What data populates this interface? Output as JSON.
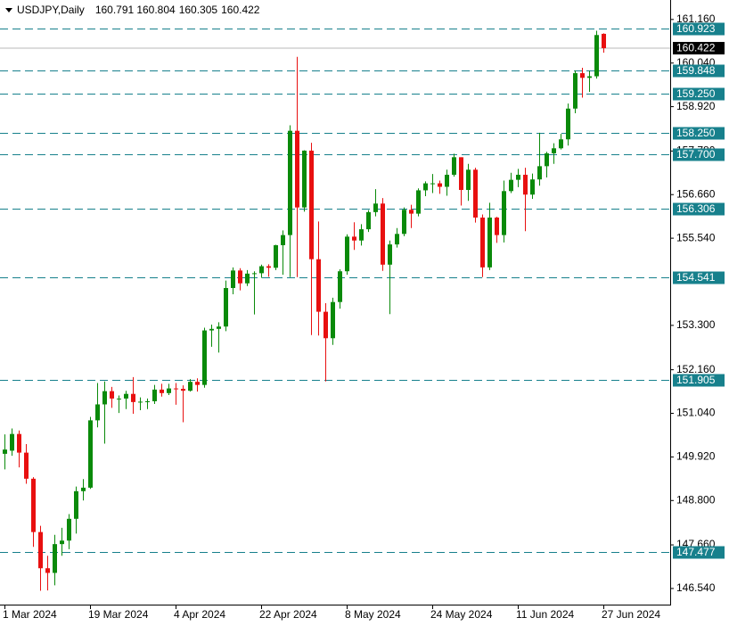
{
  "chart_data": {
    "type": "candlestick",
    "title": "USDJPY,Daily",
    "categories": [
      "1 Mar 2024",
      null,
      null,
      null,
      null,
      null,
      null,
      null,
      null,
      null,
      null,
      null,
      "19 Mar 2024",
      null,
      null,
      null,
      null,
      null,
      null,
      null,
      null,
      null,
      null,
      null,
      "4 Apr 2024",
      null,
      null,
      null,
      null,
      null,
      null,
      null,
      null,
      null,
      null,
      null,
      "22 Apr 2024",
      null,
      null,
      null,
      null,
      null,
      null,
      null,
      null,
      null,
      null,
      null,
      "8 May 2024",
      null,
      null,
      null,
      null,
      null,
      null,
      null,
      null,
      null,
      null,
      null,
      "24 May 2024",
      null,
      null,
      null,
      null,
      null,
      null,
      null,
      null,
      null,
      null,
      null,
      "11 Jun 2024",
      null,
      null,
      null,
      null,
      null,
      null,
      null,
      null,
      null,
      null,
      null,
      "27 Jun 2024"
    ],
    "open": [
      150.0,
      150.08,
      150.51,
      150.03,
      149.36,
      147.99,
      147.06,
      146.94,
      147.68,
      147.77,
      148.33,
      149.04,
      149.13,
      150.86,
      151.27,
      151.61,
      151.42,
      151.42,
      151.54,
      151.33,
      151.34,
      151.35,
      151.65,
      151.56,
      151.68,
      151.67,
      151.62,
      151.85,
      151.77,
      153.17,
      153.21,
      153.27,
      154.26,
      154.71,
      154.38,
      154.63,
      154.64,
      154.82,
      154.78,
      155.36,
      155.62,
      158.3,
      156.33,
      157.79,
      155.0,
      153.65,
      152.97,
      153.9,
      154.69,
      155.58,
      155.48,
      155.77,
      156.21,
      156.43,
      154.86,
      155.38,
      155.65,
      156.27,
      156.17,
      156.77,
      156.95,
      156.95,
      156.86,
      157.17,
      157.62,
      156.78,
      157.3,
      156.07,
      154.79,
      156.07,
      155.62,
      156.75,
      157.04,
      157.17,
      156.66,
      157.05,
      157.39,
      157.72,
      157.85,
      158.08,
      158.87,
      159.78,
      159.66,
      159.7,
      160.791
    ],
    "high": [
      150.5,
      150.65,
      150.6,
      150.25,
      149.4,
      148.15,
      147.38,
      147.92,
      148.1,
      148.45,
      149.16,
      149.35,
      150.95,
      151.82,
      151.86,
      151.72,
      151.5,
      151.62,
      151.97,
      151.45,
      151.42,
      151.77,
      151.8,
      151.8,
      151.82,
      151.76,
      151.92,
      151.94,
      153.24,
      153.32,
      153.38,
      154.45,
      154.79,
      154.77,
      154.72,
      154.69,
      154.86,
      154.87,
      155.37,
      155.74,
      158.44,
      160.2,
      157.8,
      157.99,
      155.97,
      153.87,
      154.01,
      154.74,
      155.64,
      155.95,
      155.9,
      156.26,
      156.8,
      156.57,
      155.48,
      155.8,
      156.33,
      156.4,
      156.82,
      157.0,
      157.19,
      157.02,
      157.3,
      157.71,
      157.62,
      157.45,
      157.35,
      156.15,
      156.45,
      156.09,
      157.02,
      157.22,
      157.32,
      157.35,
      157.2,
      158.25,
      157.76,
      157.98,
      158.22,
      159.0,
      159.85,
      159.92,
      159.84,
      160.87,
      160.804
    ],
    "low": [
      149.6,
      149.95,
      149.65,
      149.23,
      147.61,
      146.48,
      146.49,
      146.62,
      147.38,
      147.55,
      147.95,
      148.8,
      149.1,
      150.68,
      150.26,
      151.18,
      151.05,
      151.15,
      151.03,
      151.12,
      151.15,
      151.28,
      151.47,
      151.51,
      151.26,
      150.81,
      151.6,
      151.6,
      151.7,
      152.75,
      152.6,
      153.15,
      154.1,
      154.2,
      154.31,
      153.58,
      154.52,
      154.55,
      154.72,
      154.6,
      154.54,
      154.54,
      156.22,
      153.05,
      153.04,
      151.86,
      152.8,
      153.73,
      154.6,
      155.24,
      155.35,
      155.7,
      156.1,
      154.7,
      153.59,
      155.3,
      155.59,
      155.8,
      156.1,
      156.62,
      156.7,
      156.68,
      156.63,
      157.12,
      156.38,
      156.5,
      155.94,
      154.54,
      154.72,
      155.42,
      155.43,
      156.7,
      156.85,
      155.72,
      156.55,
      156.89,
      157.1,
      157.45,
      157.82,
      157.92,
      158.75,
      159.15,
      159.3,
      159.64,
      160.305
    ],
    "close": [
      150.11,
      150.51,
      150.03,
      149.36,
      147.99,
      147.06,
      146.94,
      147.68,
      147.77,
      148.33,
      149.04,
      149.13,
      150.86,
      151.27,
      151.61,
      151.42,
      151.42,
      151.54,
      151.33,
      151.34,
      151.35,
      151.65,
      151.56,
      151.68,
      151.67,
      151.62,
      151.85,
      151.77,
      153.17,
      153.21,
      153.27,
      154.26,
      154.71,
      154.38,
      154.63,
      154.64,
      154.82,
      154.78,
      155.36,
      155.62,
      158.3,
      156.33,
      157.79,
      155.0,
      153.65,
      152.97,
      153.9,
      154.69,
      155.58,
      155.48,
      155.77,
      156.21,
      156.43,
      154.86,
      155.38,
      155.65,
      156.27,
      156.17,
      156.77,
      156.95,
      156.95,
      156.86,
      157.17,
      157.62,
      156.78,
      157.3,
      156.07,
      154.79,
      156.07,
      155.62,
      156.75,
      157.04,
      157.17,
      156.66,
      157.05,
      157.39,
      157.72,
      157.85,
      158.08,
      158.87,
      159.78,
      159.66,
      159.7,
      160.76,
      160.422
    ],
    "up_color": "#0a8a0a",
    "down_color": "#e81010",
    "level_color": "#17808c",
    "price_line_color": "#b8b8b8",
    "levels": [
      160.923,
      159.848,
      {
        "value": 159.25,
        "label": "159.250"
      },
      {
        "value": 158.25,
        "label": "158.250"
      },
      {
        "value": 157.7,
        "label": "157.700"
      },
      156.306,
      154.541,
      151.905,
      147.477
    ],
    "ylim": [
      146.08,
      161.66
    ],
    "yticks": [
      {
        "value": 161.16,
        "label": "161.160"
      },
      {
        "value": 160.04,
        "label": "160.040"
      },
      {
        "value": 158.92,
        "label": "158.920"
      },
      {
        "value": 157.78,
        "label": "157.780"
      },
      {
        "value": 156.66,
        "label": "156.660"
      },
      {
        "value": 155.54,
        "label": "155.540"
      },
      {
        "value": 153.3,
        "label": "153.300"
      },
      {
        "value": 152.16,
        "label": "152.160"
      },
      {
        "value": 151.04,
        "label": "151.040"
      },
      {
        "value": 149.92,
        "label": "149.920"
      },
      {
        "value": 148.8,
        "label": "148.800"
      },
      {
        "value": 147.66,
        "label": "147.660"
      },
      {
        "value": 146.54,
        "label": "146.540"
      }
    ],
    "grid": false
  }
}
